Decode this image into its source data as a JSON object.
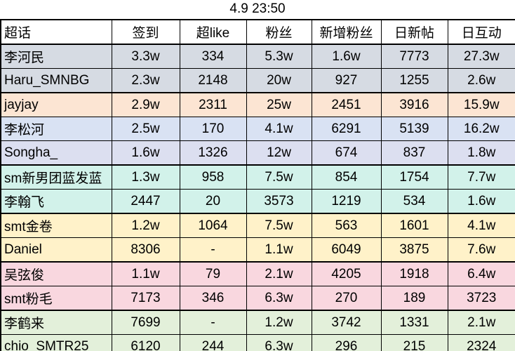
{
  "title": "4.9 23:50",
  "chart_data": {
    "type": "table",
    "title": "4.9 23:50",
    "columns": [
      "超话",
      "签到",
      "超like",
      "粉丝",
      "新增粉丝",
      "日新帖",
      "日互动"
    ],
    "rows": [
      {
        "name": "李河民",
        "values": [
          "3.3w",
          "334",
          "5.3w",
          "1.6w",
          "7773",
          "27.3w"
        ],
        "bg": "#d6dbe3",
        "thick_bottom": false
      },
      {
        "name": "Haru_SMNBG",
        "values": [
          "2.3w",
          "2148",
          "20w",
          "927",
          "1255",
          "2.6w"
        ],
        "bg": "#d6dbe3",
        "thick_bottom": true
      },
      {
        "name": "jayjay",
        "values": [
          "2.9w",
          "2311",
          "25w",
          "2451",
          "3916",
          "15.9w"
        ],
        "bg": "#fce5d3",
        "thick_bottom": false
      },
      {
        "name": "李松河",
        "values": [
          "2.5w",
          "170",
          "4.1w",
          "6291",
          "5139",
          "16.2w"
        ],
        "bg": "#d9e2f3",
        "thick_bottom": false
      },
      {
        "name": "Songha_",
        "values": [
          "1.6w",
          "1326",
          "12w",
          "674",
          "837",
          "1.8w"
        ],
        "bg": "#dcdff0",
        "thick_bottom": true
      },
      {
        "name": "sm新男团蓝发蓝",
        "values": [
          "1.3w",
          "958",
          "7.5w",
          "854",
          "1754",
          "7.7w"
        ],
        "bg": "#d2f2ea",
        "thick_bottom": false
      },
      {
        "name": "李翰飞",
        "values": [
          "2447",
          "20",
          "3573",
          "1219",
          "534",
          "1.6w"
        ],
        "bg": "#d2f2ea",
        "thick_bottom": true
      },
      {
        "name": "smt金卷",
        "values": [
          "1.2w",
          "1064",
          "7.5w",
          "563",
          "1601",
          "4.1w"
        ],
        "bg": "#fff2c9",
        "thick_bottom": false
      },
      {
        "name": "Daniel",
        "values": [
          "8306",
          "-",
          "1.1w",
          "6049",
          "3875",
          "7.6w"
        ],
        "bg": "#fff2c9",
        "thick_bottom": true
      },
      {
        "name": "吴弦俊",
        "values": [
          "1.1w",
          "79",
          "2.1w",
          "4205",
          "1918",
          "6.4w"
        ],
        "bg": "#f9d7df",
        "thick_bottom": false
      },
      {
        "name": "smt粉毛",
        "values": [
          "7173",
          "346",
          "6.3w",
          "270",
          "189",
          "3723"
        ],
        "bg": "#f9d7df",
        "thick_bottom": true
      },
      {
        "name": "李鹤来",
        "values": [
          "7699",
          "-",
          "1.2w",
          "3742",
          "1331",
          "2.1w"
        ],
        "bg": "#e3f0da",
        "thick_bottom": false
      },
      {
        "name": "chio_SMTR25",
        "values": [
          "6120",
          "244",
          "6.3w",
          "296",
          "215",
          "2324"
        ],
        "bg": "#e3f0da",
        "thick_bottom": false
      }
    ]
  }
}
